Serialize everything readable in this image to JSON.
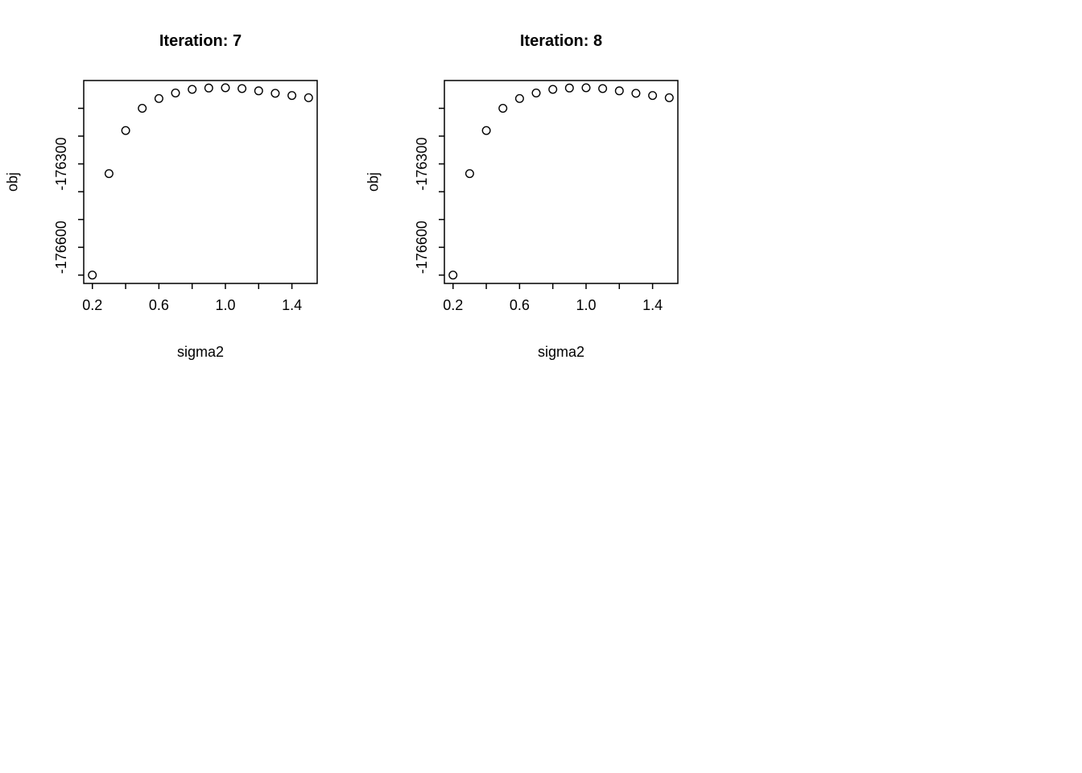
{
  "page": {
    "background_color": "#ffffff",
    "foreground_color": "#000000"
  },
  "chart_data": [
    {
      "type": "scatter",
      "title": "Iteration: 7",
      "xlabel": "sigma2",
      "ylabel": "obj",
      "marker": "open-circle",
      "marker_color": "#000000",
      "grid": false,
      "legend": null,
      "xlim": [
        0.148,
        1.552
      ],
      "ylim": [
        -176730,
        -176000
      ],
      "xticks": [
        0.2,
        0.4,
        0.6,
        0.8,
        1.0,
        1.2,
        1.4
      ],
      "xtick_labels": [
        "0.2",
        "",
        "0.6",
        "",
        "1.0",
        "",
        "1.4"
      ],
      "yticks": [
        -176700,
        -176600,
        -176500,
        -176400,
        -176300,
        -176200,
        -176100
      ],
      "ytick_labels": [
        "",
        "-176600",
        "",
        "",
        "-176300",
        "",
        ""
      ],
      "x": [
        0.2,
        0.3,
        0.4,
        0.5,
        0.6,
        0.7,
        0.8,
        0.9,
        1.0,
        1.1,
        1.2,
        1.3,
        1.4,
        1.5
      ],
      "y": [
        -176700,
        -176335,
        -176180,
        -176100,
        -176065,
        -176045,
        -176032,
        -176027,
        -176026,
        -176029,
        -176037,
        -176046,
        -176054,
        -176062
      ]
    },
    {
      "type": "scatter",
      "title": "Iteration: 8",
      "xlabel": "sigma2",
      "ylabel": "obj",
      "marker": "open-circle",
      "marker_color": "#000000",
      "grid": false,
      "legend": null,
      "xlim": [
        0.148,
        1.552
      ],
      "ylim": [
        -176730,
        -176000
      ],
      "xticks": [
        0.2,
        0.4,
        0.6,
        0.8,
        1.0,
        1.2,
        1.4
      ],
      "xtick_labels": [
        "0.2",
        "",
        "0.6",
        "",
        "1.0",
        "",
        "1.4"
      ],
      "yticks": [
        -176700,
        -176600,
        -176500,
        -176400,
        -176300,
        -176200,
        -176100
      ],
      "ytick_labels": [
        "",
        "-176600",
        "",
        "",
        "-176300",
        "",
        ""
      ],
      "x": [
        0.2,
        0.3,
        0.4,
        0.5,
        0.6,
        0.7,
        0.8,
        0.9,
        1.0,
        1.1,
        1.2,
        1.3,
        1.4,
        1.5
      ],
      "y": [
        -176700,
        -176335,
        -176180,
        -176100,
        -176065,
        -176045,
        -176032,
        -176027,
        -176026,
        -176029,
        -176037,
        -176046,
        -176054,
        -176062
      ]
    }
  ]
}
